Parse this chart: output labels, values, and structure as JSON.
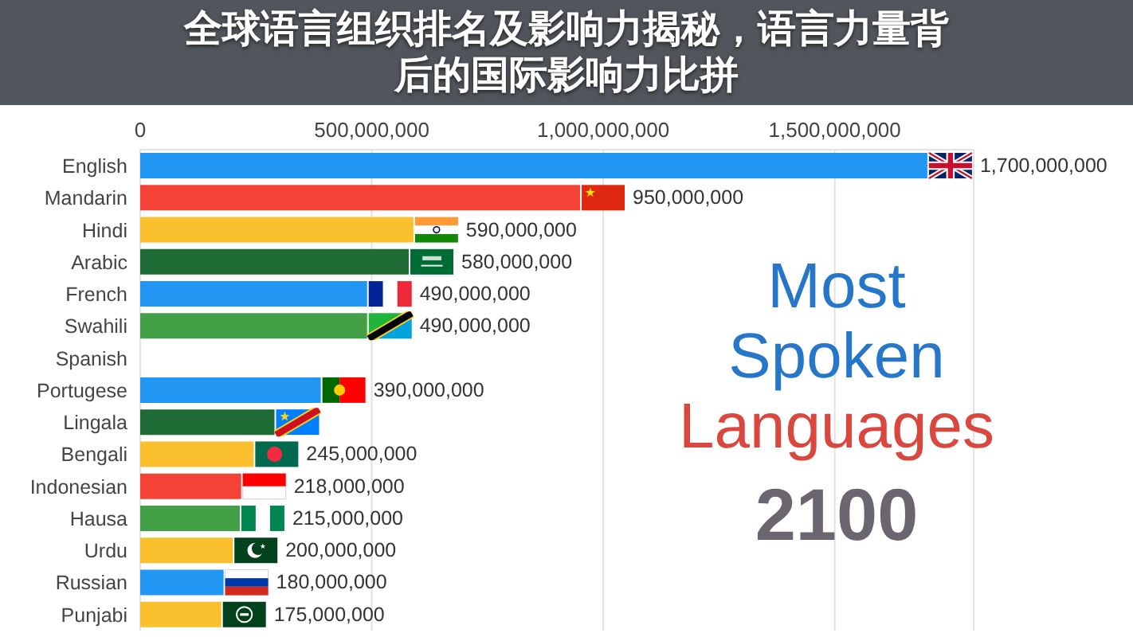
{
  "chart_data": {
    "type": "bar",
    "orientation": "horizontal",
    "title": "全球语言组织排名及影响力揭秘，语言力量背后的国际影响力比拼",
    "subtitle": "Most Spoken Languages",
    "annotations": [
      "2100"
    ],
    "categories": [
      "English",
      "Mandarin",
      "Hindi",
      "Arabic",
      "French",
      "Swahili",
      "Spanish",
      "Portugese",
      "Lingala",
      "Bengali",
      "Indonesian",
      "Hausa",
      "Urdu",
      "Russian",
      "Punjabi"
    ],
    "values": [
      1700000000,
      950000000,
      590000000,
      580000000,
      490000000,
      490000000,
      null,
      390000000,
      290000000,
      245000000,
      218000000,
      215000000,
      200000000,
      180000000,
      175000000
    ],
    "colors": [
      "#2196f3",
      "#f44336",
      "#fbc02d",
      "#1e6b35",
      "#2196f3",
      "#43a047",
      null,
      "#2196f3",
      "#1e6b35",
      "#fbc02d",
      "#f44336",
      "#43a047",
      "#fbc02d",
      "#2196f3",
      "#fbc02d"
    ],
    "value_labels": [
      "1,700,000,000",
      "950,000,000",
      "590,000,000",
      "580,000,000",
      "490,000,000",
      "490,000,000",
      null,
      "390,000,000",
      null,
      "245,000,000",
      "218,000,000",
      "215,000,000",
      "200,000,000",
      "180,000,000",
      "175,000,000"
    ],
    "xlim": [
      0,
      1800000000
    ],
    "xticks": [
      0,
      {
        "value": 500000000,
        "label": "500,000,000"
      },
      {
        "value": 1000000000,
        "label": "1,000,000,000"
      },
      {
        "value": 1500000000,
        "label": "1,500,000,000"
      }
    ],
    "grid": "x"
  }
}
